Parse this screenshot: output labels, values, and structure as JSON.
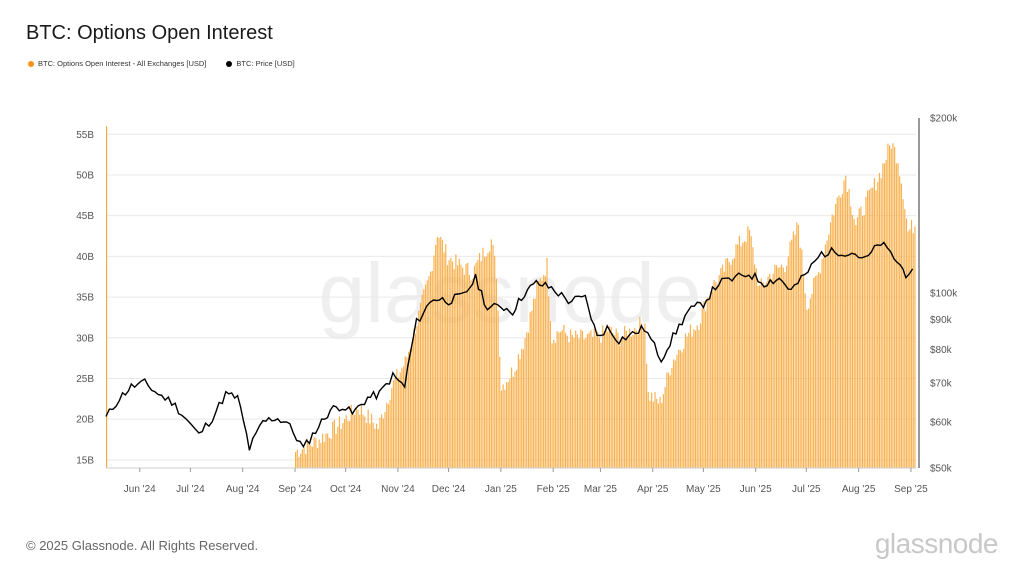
{
  "title": "BTC: Options Open Interest",
  "legend": [
    {
      "label": "BTC: Options Open Interest - All Exchanges [USD]",
      "color": "#f7931a"
    },
    {
      "label": "BTC: Price [USD]",
      "color": "#000000"
    }
  ],
  "watermark": "glassnode",
  "footer": "© 2025 Glassnode. All Rights Reserved.",
  "brand": "glassnode",
  "colors": {
    "bars": "#f7a83c",
    "price": "#000000",
    "grid": "#e9e9e9"
  },
  "chart_data": {
    "type": "bar",
    "title": "BTC: Options Open Interest",
    "x_ticks": [
      "Jun '24",
      "Jul '24",
      "Aug '24",
      "Sep '24",
      "Oct '24",
      "Nov '24",
      "Dec '24",
      "Jan '25",
      "Feb '25",
      "Mar '25",
      "Apr '25",
      "May '25",
      "Jun '25",
      "Jul '25",
      "Aug '25",
      "Sep '25"
    ],
    "y_left": {
      "ticks": [
        "15B",
        "20B",
        "25B",
        "30B",
        "35B",
        "40B",
        "45B",
        "50B",
        "55B"
      ],
      "tick_values": [
        15,
        20,
        25,
        30,
        35,
        40,
        45,
        50,
        55
      ],
      "range": [
        14,
        57
      ],
      "unit": "B USD"
    },
    "y_right": {
      "ticks": [
        "$50k",
        "$60k",
        "$70k",
        "$80k",
        "$90k",
        "$100k",
        "$200k"
      ],
      "tick_values": [
        50,
        60,
        70,
        80,
        90,
        100,
        200
      ],
      "scale": "log",
      "range": [
        50,
        200
      ],
      "unit": "k USD"
    },
    "series": [
      {
        "name": "BTC: Options Open Interest - All Exchanges [USD]",
        "type": "bar",
        "axis": "left",
        "points": [
          [
            "2024-05-12",
            56
          ],
          [
            "2024-09-01",
            16
          ],
          [
            "2024-09-15",
            17.5
          ],
          [
            "2024-09-28",
            19.5
          ],
          [
            "2024-10-08",
            21.5
          ],
          [
            "2024-10-20",
            19
          ],
          [
            "2024-10-28",
            24
          ],
          [
            "2024-11-05",
            27
          ],
          [
            "2024-11-12",
            32
          ],
          [
            "2024-11-20",
            38
          ],
          [
            "2024-11-24",
            43
          ],
          [
            "2024-11-30",
            40
          ],
          [
            "2024-12-06",
            39
          ],
          [
            "2024-12-15",
            38
          ],
          [
            "2024-12-20",
            40
          ],
          [
            "2024-12-26",
            42
          ],
          [
            "2024-12-29",
            38
          ],
          [
            "2025-01-01",
            24
          ],
          [
            "2025-01-08",
            26
          ],
          [
            "2025-01-15",
            30
          ],
          [
            "2025-01-22",
            36
          ],
          [
            "2025-01-28",
            39
          ],
          [
            "2025-01-31",
            30
          ],
          [
            "2025-02-05",
            31
          ],
          [
            "2025-02-12",
            30
          ],
          [
            "2025-02-20",
            30
          ],
          [
            "2025-02-27",
            30
          ],
          [
            "2025-03-05",
            31
          ],
          [
            "2025-03-12",
            30
          ],
          [
            "2025-03-20",
            31
          ],
          [
            "2025-03-27",
            32
          ],
          [
            "2025-03-29",
            23
          ],
          [
            "2025-04-05",
            22
          ],
          [
            "2025-04-12",
            27
          ],
          [
            "2025-04-20",
            30
          ],
          [
            "2025-04-28",
            32
          ],
          [
            "2025-05-05",
            36
          ],
          [
            "2025-05-12",
            38
          ],
          [
            "2025-05-20",
            41
          ],
          [
            "2025-05-28",
            43
          ],
          [
            "2025-06-03",
            36
          ],
          [
            "2025-06-10",
            38
          ],
          [
            "2025-06-18",
            39
          ],
          [
            "2025-06-26",
            44
          ],
          [
            "2025-07-01",
            34
          ],
          [
            "2025-07-08",
            38
          ],
          [
            "2025-07-16",
            45
          ],
          [
            "2025-07-24",
            50
          ],
          [
            "2025-07-30",
            44
          ],
          [
            "2025-08-06",
            47
          ],
          [
            "2025-08-13",
            50
          ],
          [
            "2025-08-20",
            54
          ],
          [
            "2025-08-24",
            52
          ],
          [
            "2025-08-27",
            48
          ],
          [
            "2025-08-30",
            43
          ],
          [
            "2025-09-03",
            44
          ]
        ]
      },
      {
        "name": "BTC: Price [USD]",
        "type": "line",
        "axis": "right",
        "points": [
          [
            "2024-05-12",
            61
          ],
          [
            "2024-05-20",
            66
          ],
          [
            "2024-05-27",
            69
          ],
          [
            "2024-06-04",
            70
          ],
          [
            "2024-06-12",
            67
          ],
          [
            "2024-06-20",
            65
          ],
          [
            "2024-06-28",
            61
          ],
          [
            "2024-07-06",
            57
          ],
          [
            "2024-07-14",
            61
          ],
          [
            "2024-07-22",
            67
          ],
          [
            "2024-07-29",
            66
          ],
          [
            "2024-08-05",
            54
          ],
          [
            "2024-08-13",
            60
          ],
          [
            "2024-08-20",
            61
          ],
          [
            "2024-08-27",
            60
          ],
          [
            "2024-09-06",
            54
          ],
          [
            "2024-09-15",
            59
          ],
          [
            "2024-09-22",
            63
          ],
          [
            "2024-09-29",
            64
          ],
          [
            "2024-10-05",
            62
          ],
          [
            "2024-10-14",
            66
          ],
          [
            "2024-10-21",
            67
          ],
          [
            "2024-10-29",
            72
          ],
          [
            "2024-11-05",
            69
          ],
          [
            "2024-11-12",
            89
          ],
          [
            "2024-11-22",
            98
          ],
          [
            "2024-12-01",
            97
          ],
          [
            "2024-12-10",
            99
          ],
          [
            "2024-12-17",
            106
          ],
          [
            "2024-12-24",
            94
          ],
          [
            "2025-01-01",
            95
          ],
          [
            "2025-01-08",
            93
          ],
          [
            "2025-01-15",
            100
          ],
          [
            "2025-01-22",
            104
          ],
          [
            "2025-01-31",
            102
          ],
          [
            "2025-02-10",
            97
          ],
          [
            "2025-02-20",
            98
          ],
          [
            "2025-02-27",
            84
          ],
          [
            "2025-03-05",
            87
          ],
          [
            "2025-03-12",
            83
          ],
          [
            "2025-03-20",
            85
          ],
          [
            "2025-03-27",
            87
          ],
          [
            "2025-04-06",
            77
          ],
          [
            "2025-04-13",
            84
          ],
          [
            "2025-04-22",
            93
          ],
          [
            "2025-05-01",
            96
          ],
          [
            "2025-05-10",
            104
          ],
          [
            "2025-05-20",
            106
          ],
          [
            "2025-05-28",
            108
          ],
          [
            "2025-06-06",
            104
          ],
          [
            "2025-06-15",
            106
          ],
          [
            "2025-06-22",
            101
          ],
          [
            "2025-06-30",
            107
          ],
          [
            "2025-07-10",
            117
          ],
          [
            "2025-07-20",
            118
          ],
          [
            "2025-07-30",
            117
          ],
          [
            "2025-08-05",
            114
          ],
          [
            "2025-08-14",
            122
          ],
          [
            "2025-08-22",
            115
          ],
          [
            "2025-08-29",
            108
          ],
          [
            "2025-09-02",
            110
          ]
        ]
      }
    ],
    "grid": true,
    "legend_position": "top-left"
  }
}
